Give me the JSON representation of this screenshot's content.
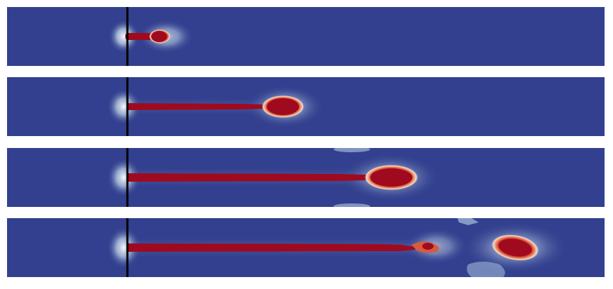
{
  "figure": {
    "background_color": "#ffffff",
    "field_background_color": "#33408f",
    "divider_color": "#000000",
    "colormap": [
      "#33408f",
      "#9fb8d8",
      "#f0e0c8",
      "#e87050",
      "#a00a1e"
    ],
    "panels": [
      {
        "id": "panel-1",
        "jet_progress": 0.07
      },
      {
        "id": "panel-2",
        "jet_progress": 0.3
      },
      {
        "id": "panel-3",
        "jet_progress": 0.48
      },
      {
        "id": "panel-4",
        "jet_progress": 0.68
      }
    ]
  }
}
